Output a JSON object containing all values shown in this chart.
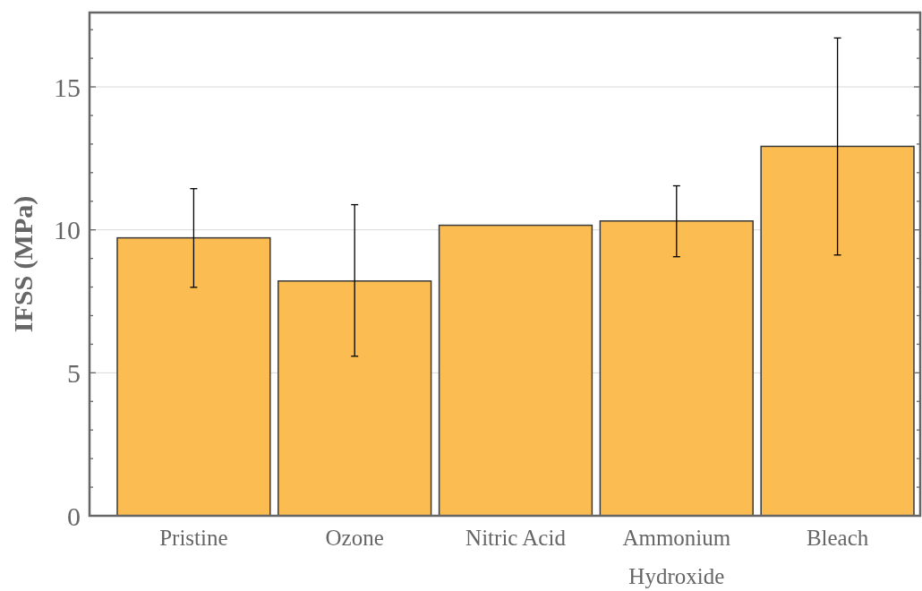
{
  "chart_data": {
    "type": "bar",
    "ylabel": "IFSS (MPa)",
    "categories": [
      "Pristine",
      "Ozone",
      "Nitric Acid",
      "Ammonium Hydroxide",
      "Bleach"
    ],
    "values": [
      9.72,
      8.21,
      10.16,
      10.31,
      12.92
    ],
    "errors": [
      [
        7.99,
        11.44
      ],
      [
        5.58,
        10.88
      ],
      null,
      [
        9.06,
        11.54
      ],
      [
        9.12,
        16.71
      ]
    ],
    "color": "#fbbc52",
    "ylim": [
      0,
      17.6
    ],
    "yticks": [
      0,
      {
        "value": 1,
        "label": null
      },
      {
        "value": 2,
        "label": null
      },
      {
        "value": 3,
        "label": null
      },
      {
        "value": 4,
        "label": null
      },
      5,
      {
        "value": 6,
        "label": null
      },
      {
        "value": 7,
        "label": null
      },
      {
        "value": 8,
        "label": null
      },
      {
        "value": 9,
        "label": null
      },
      10,
      {
        "value": 11,
        "label": null
      },
      {
        "value": 12,
        "label": null
      },
      {
        "value": 13,
        "label": null
      },
      {
        "value": 14,
        "label": null
      },
      15,
      {
        "value": 16,
        "label": null
      },
      {
        "value": 17,
        "label": null
      }
    ],
    "grid": "y"
  }
}
